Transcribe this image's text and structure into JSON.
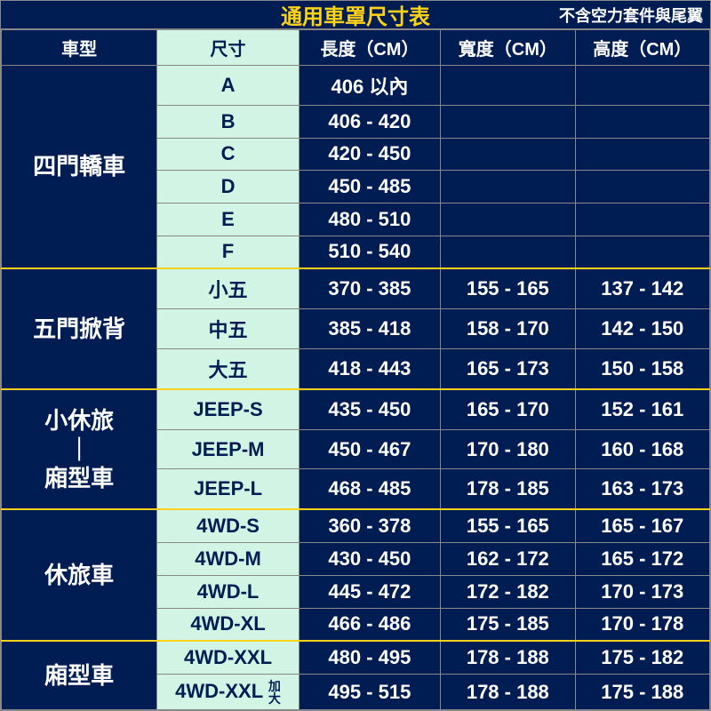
{
  "title": "通用車罩尺寸表",
  "note": "不含空力套件與尾翼",
  "columns": [
    "車型",
    "尺寸",
    "長度（CM）",
    "寬度（CM）",
    "高度（CM）"
  ],
  "categories": [
    {
      "name": "四門轎車",
      "rows": [
        {
          "size": "A",
          "l": "406 以內",
          "w": "",
          "h": ""
        },
        {
          "size": "B",
          "l": "406 - 420",
          "w": "",
          "h": ""
        },
        {
          "size": "C",
          "l": "420 - 450",
          "w": "",
          "h": ""
        },
        {
          "size": "D",
          "l": "450 - 485",
          "w": "",
          "h": ""
        },
        {
          "size": "E",
          "l": "480 - 510",
          "w": "",
          "h": ""
        },
        {
          "size": "F",
          "l": "510 - 540",
          "w": "",
          "h": ""
        }
      ]
    },
    {
      "name": "五門掀背",
      "rows": [
        {
          "size": "小五",
          "l": "370 - 385",
          "w": "155 - 165",
          "h": "137 - 142"
        },
        {
          "size": "中五",
          "l": "385 - 418",
          "w": "158 - 170",
          "h": "142 - 150"
        },
        {
          "size": "大五",
          "l": "418 - 443",
          "w": "165 - 173",
          "h": "150 - 158"
        }
      ]
    },
    {
      "name": "小休旅\n｜\n廂型車",
      "rows": [
        {
          "size": "JEEP-S",
          "l": "435 - 450",
          "w": "165 - 170",
          "h": "152 - 161"
        },
        {
          "size": "JEEP-M",
          "l": "450 - 467",
          "w": "170 - 180",
          "h": "160 - 168"
        },
        {
          "size": "JEEP-L",
          "l": "468 - 485",
          "w": "178 - 185",
          "h": "163 - 173"
        }
      ]
    },
    {
      "name": "休旅車",
      "rows": [
        {
          "size": "4WD-S",
          "l": "360 - 378",
          "w": "155 - 165",
          "h": "165 - 167"
        },
        {
          "size": "4WD-M",
          "l": "430 - 450",
          "w": "162 - 172",
          "h": "165 - 172"
        },
        {
          "size": "4WD-L",
          "l": "445 - 472",
          "w": "172 - 182",
          "h": "170 - 173"
        },
        {
          "size": "4WD-XL",
          "l": "466 - 486",
          "w": "175 - 185",
          "h": "170 - 178"
        }
      ]
    },
    {
      "name": "廂型車",
      "rows": [
        {
          "size": "4WD-XXL",
          "l": "480 - 495",
          "w": "178 - 188",
          "h": "175 - 182"
        },
        {
          "size": "4WD-XXL",
          "size_suffix": "加大",
          "l": "495 - 515",
          "w": "178 - 188",
          "h": "175 - 188"
        }
      ]
    }
  ],
  "colors": {
    "bg_dark": "#001d53",
    "bg_mint": "#d2f4e5",
    "accent_yellow": "#ffd21a",
    "text_light": "#ffffff"
  }
}
